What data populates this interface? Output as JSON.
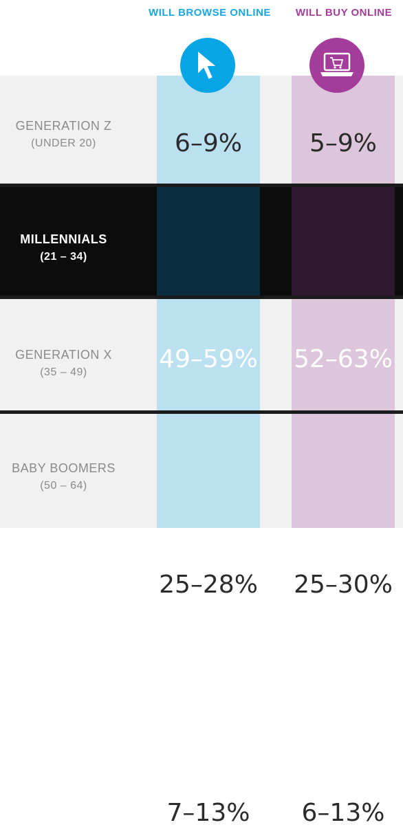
{
  "columns": {
    "browse": {
      "title": "WILL BROWSE ONLINE",
      "color": "#1aa7e0",
      "icon": "cursor-arrow-icon"
    },
    "buy": {
      "title": "WILL BUY ONLINE",
      "color": "#a43c9b",
      "icon": "laptop-cart-icon"
    }
  },
  "chart_data": {
    "type": "table",
    "columns": [
      "WILL BROWSE ONLINE",
      "WILL BUY ONLINE"
    ],
    "rows": [
      {
        "generation": "GENERATION Z",
        "age": "(UNDER 20)",
        "browse": "6–9%",
        "buy": "5–9%",
        "highlight": false
      },
      {
        "generation": "MILLENNIALS",
        "age": "(21 – 34)",
        "browse": "49–59%",
        "buy": "52–63%",
        "highlight": true
      },
      {
        "generation": "GENERATION X",
        "age": "(35 – 49)",
        "browse": "25–28%",
        "buy": "25–30%",
        "highlight": false
      },
      {
        "generation": "BABY BOOMERS",
        "age": "(50 – 64)",
        "browse": "7–13%",
        "buy": "6–13%",
        "highlight": false
      }
    ]
  }
}
